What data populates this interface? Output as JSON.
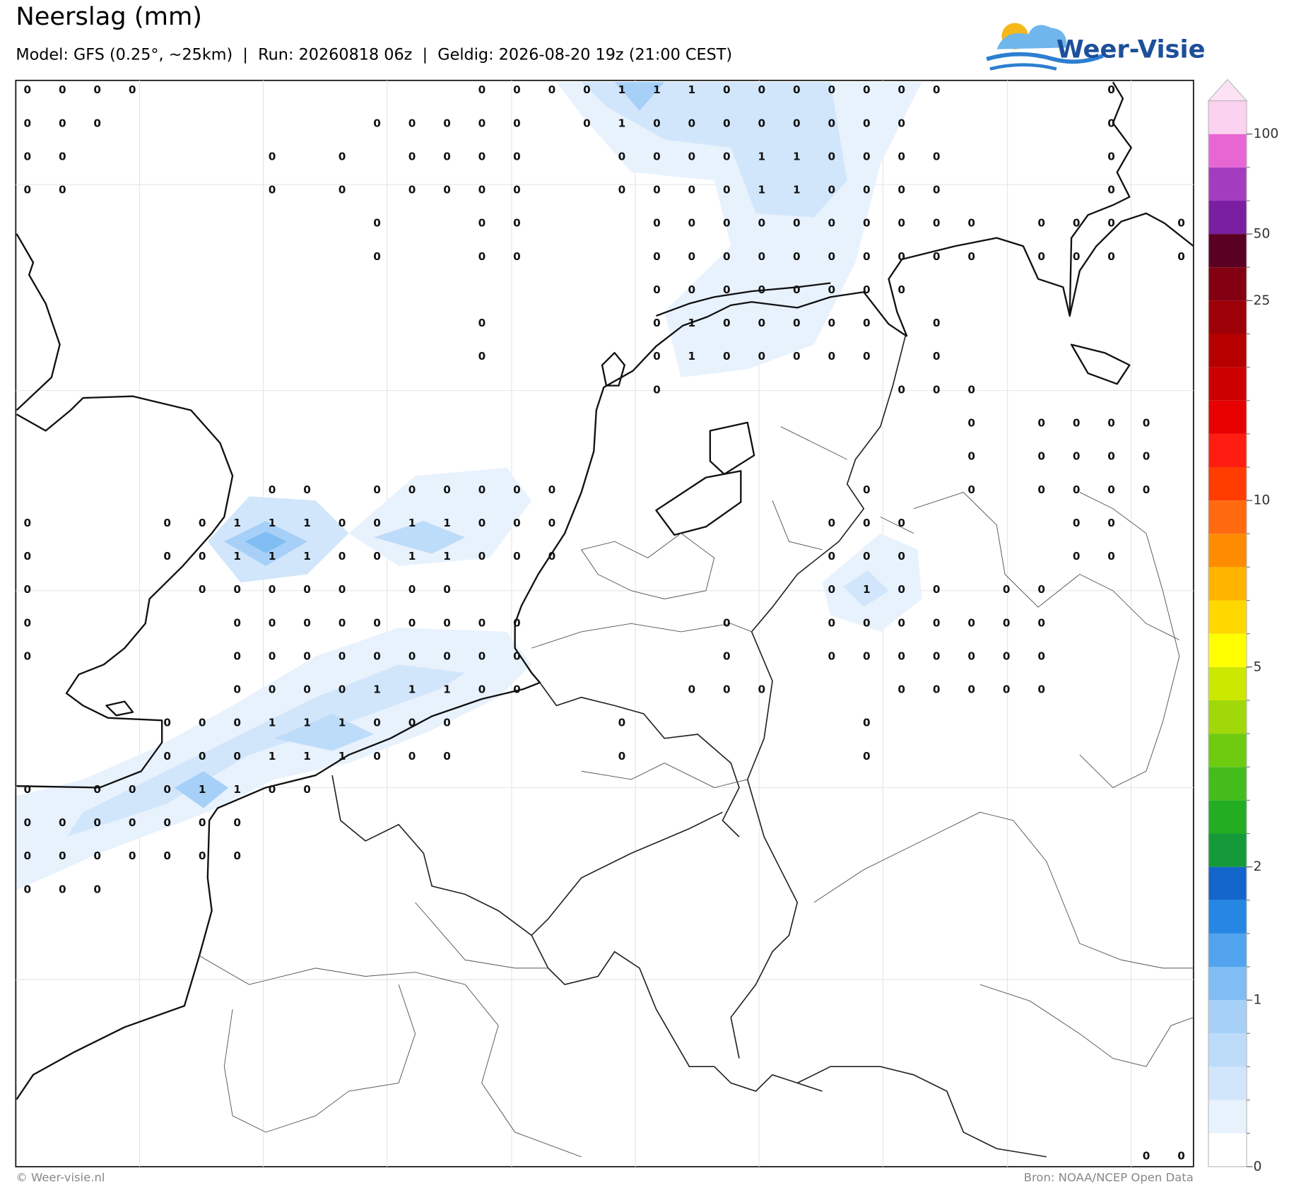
{
  "header": {
    "title": "Neerslag (mm)",
    "subtitle": "Model: GFS (0.25°, ~25km)  |  Run: 20260818 06z  |  Geldig: 2026-08-20 19z (21:00 CEST)"
  },
  "logo": {
    "text": "Weer-Visie"
  },
  "grid": {
    "rows": [
      [
        0,
        0,
        0,
        0,
        null,
        null,
        null,
        null,
        null,
        null,
        null,
        null,
        null,
        0,
        0,
        0,
        0,
        1,
        1,
        1,
        0,
        0,
        0,
        0,
        0,
        0,
        0,
        null,
        null,
        null,
        null,
        0,
        null,
        null
      ],
      [
        0,
        0,
        0,
        null,
        null,
        null,
        null,
        null,
        null,
        null,
        0,
        0,
        0,
        0,
        0,
        null,
        0,
        1,
        0,
        0,
        0,
        0,
        0,
        0,
        0,
        0,
        null,
        null,
        null,
        null,
        null,
        0,
        null,
        null
      ],
      [
        0,
        0,
        null,
        null,
        null,
        null,
        null,
        0,
        null,
        0,
        null,
        0,
        0,
        0,
        0,
        null,
        null,
        0,
        0,
        0,
        0,
        1,
        1,
        0,
        0,
        0,
        0,
        null,
        null,
        null,
        null,
        0,
        null,
        null
      ],
      [
        0,
        0,
        null,
        null,
        null,
        null,
        null,
        0,
        null,
        0,
        null,
        0,
        0,
        0,
        0,
        null,
        null,
        0,
        0,
        0,
        0,
        1,
        1,
        0,
        0,
        0,
        0,
        null,
        null,
        null,
        null,
        0,
        null,
        null
      ],
      [
        null,
        null,
        null,
        null,
        null,
        null,
        null,
        null,
        null,
        null,
        0,
        null,
        null,
        0,
        0,
        null,
        null,
        null,
        0,
        0,
        0,
        0,
        0,
        0,
        0,
        0,
        0,
        0,
        null,
        0,
        0,
        0,
        null,
        0
      ],
      [
        null,
        null,
        null,
        null,
        null,
        null,
        null,
        null,
        null,
        null,
        0,
        null,
        null,
        0,
        0,
        null,
        null,
        null,
        0,
        0,
        0,
        0,
        0,
        0,
        0,
        0,
        0,
        0,
        null,
        0,
        0,
        0,
        null,
        0
      ],
      [
        null,
        null,
        null,
        null,
        null,
        null,
        null,
        null,
        null,
        null,
        null,
        null,
        null,
        null,
        null,
        null,
        null,
        null,
        0,
        0,
        0,
        0,
        0,
        0,
        0,
        0,
        null,
        null,
        null,
        null,
        null,
        null,
        null,
        null
      ],
      [
        null,
        null,
        null,
        null,
        null,
        null,
        null,
        null,
        null,
        null,
        null,
        null,
        null,
        0,
        null,
        null,
        null,
        null,
        0,
        1,
        0,
        0,
        0,
        0,
        0,
        null,
        0,
        null,
        null,
        null,
        null,
        null,
        null,
        null
      ],
      [
        null,
        null,
        null,
        null,
        null,
        null,
        null,
        null,
        null,
        null,
        null,
        null,
        null,
        0,
        null,
        null,
        null,
        null,
        0,
        1,
        0,
        0,
        0,
        0,
        0,
        null,
        0,
        null,
        null,
        null,
        null,
        null,
        null,
        null
      ],
      [
        null,
        null,
        null,
        null,
        null,
        null,
        null,
        null,
        null,
        null,
        null,
        null,
        null,
        null,
        null,
        null,
        null,
        null,
        0,
        null,
        null,
        null,
        null,
        null,
        null,
        0,
        0,
        0,
        null,
        null,
        null,
        null,
        null,
        null
      ],
      [
        null,
        null,
        null,
        null,
        null,
        null,
        null,
        null,
        null,
        null,
        null,
        null,
        null,
        null,
        null,
        null,
        null,
        null,
        null,
        null,
        null,
        null,
        null,
        null,
        null,
        null,
        null,
        0,
        null,
        0,
        0,
        0,
        0,
        null
      ],
      [
        null,
        null,
        null,
        null,
        null,
        null,
        null,
        null,
        null,
        null,
        null,
        null,
        null,
        null,
        null,
        null,
        null,
        null,
        null,
        null,
        null,
        null,
        null,
        null,
        null,
        null,
        null,
        0,
        null,
        0,
        0,
        0,
        0,
        null
      ],
      [
        null,
        null,
        null,
        null,
        null,
        null,
        null,
        0,
        0,
        null,
        0,
        0,
        0,
        0,
        0,
        0,
        null,
        null,
        null,
        null,
        null,
        null,
        null,
        null,
        0,
        null,
        null,
        0,
        null,
        0,
        0,
        0,
        0,
        null
      ],
      [
        0,
        null,
        null,
        null,
        0,
        0,
        1,
        1,
        1,
        0,
        0,
        1,
        1,
        0,
        0,
        0,
        null,
        null,
        null,
        null,
        null,
        null,
        null,
        0,
        0,
        0,
        null,
        null,
        null,
        null,
        0,
        0,
        null,
        null
      ],
      [
        0,
        null,
        null,
        null,
        0,
        0,
        1,
        1,
        1,
        0,
        0,
        1,
        1,
        0,
        0,
        0,
        null,
        null,
        null,
        null,
        null,
        null,
        null,
        0,
        0,
        0,
        null,
        null,
        null,
        null,
        0,
        0,
        null,
        null
      ],
      [
        0,
        null,
        null,
        null,
        null,
        0,
        0,
        0,
        0,
        0,
        null,
        0,
        0,
        null,
        null,
        null,
        null,
        null,
        null,
        null,
        null,
        null,
        null,
        0,
        1,
        0,
        0,
        null,
        0,
        0,
        null,
        null,
        null,
        null
      ],
      [
        0,
        null,
        null,
        null,
        null,
        null,
        0,
        0,
        0,
        0,
        0,
        0,
        0,
        0,
        0,
        null,
        null,
        null,
        null,
        null,
        0,
        null,
        null,
        0,
        0,
        0,
        0,
        0,
        0,
        0,
        null,
        null,
        null,
        null
      ],
      [
        0,
        null,
        null,
        null,
        null,
        null,
        0,
        0,
        0,
        0,
        0,
        0,
        0,
        0,
        0,
        null,
        null,
        null,
        null,
        null,
        0,
        null,
        null,
        0,
        0,
        0,
        0,
        0,
        0,
        0,
        null,
        null,
        null,
        null
      ],
      [
        null,
        null,
        null,
        null,
        null,
        null,
        0,
        0,
        0,
        0,
        1,
        1,
        1,
        0,
        0,
        null,
        null,
        null,
        null,
        0,
        0,
        0,
        null,
        null,
        null,
        0,
        0,
        0,
        0,
        0,
        null,
        null,
        null,
        null
      ],
      [
        null,
        null,
        null,
        null,
        0,
        0,
        0,
        1,
        1,
        1,
        0,
        0,
        0,
        null,
        null,
        null,
        null,
        0,
        null,
        null,
        null,
        null,
        null,
        null,
        0,
        null,
        null,
        null,
        null,
        null,
        null,
        null,
        null,
        null
      ],
      [
        null,
        null,
        null,
        null,
        0,
        0,
        0,
        1,
        1,
        1,
        0,
        0,
        0,
        null,
        null,
        null,
        null,
        0,
        null,
        null,
        null,
        null,
        null,
        null,
        0,
        null,
        null,
        null,
        null,
        null,
        null,
        null,
        null,
        null
      ],
      [
        0,
        null,
        0,
        0,
        0,
        1,
        1,
        0,
        0,
        null,
        null,
        null,
        null,
        null,
        null,
        null,
        null,
        null,
        null,
        null,
        null,
        null,
        null,
        null,
        null,
        null,
        null,
        null,
        null,
        null,
        null,
        null,
        null,
        null
      ],
      [
        0,
        0,
        0,
        0,
        0,
        0,
        0,
        null,
        null,
        null,
        null,
        null,
        null,
        null,
        null,
        null,
        null,
        null,
        null,
        null,
        null,
        null,
        null,
        null,
        null,
        null,
        null,
        null,
        null,
        null,
        null,
        null,
        null,
        null
      ],
      [
        0,
        0,
        0,
        0,
        0,
        0,
        0,
        null,
        null,
        null,
        null,
        null,
        null,
        null,
        null,
        null,
        null,
        null,
        null,
        null,
        null,
        null,
        null,
        null,
        null,
        null,
        null,
        null,
        null,
        null,
        null,
        null,
        null,
        null
      ],
      [
        0,
        0,
        0,
        null,
        null,
        null,
        null,
        null,
        null,
        null,
        null,
        null,
        null,
        null,
        null,
        null,
        null,
        null,
        null,
        null,
        null,
        null,
        null,
        null,
        null,
        null,
        null,
        null,
        null,
        null,
        null,
        null,
        null,
        null
      ],
      [
        null,
        null,
        null,
        null,
        null,
        null,
        null,
        null,
        null,
        null,
        null,
        null,
        null,
        null,
        null,
        null,
        null,
        null,
        null,
        null,
        null,
        null,
        null,
        null,
        null,
        null,
        null,
        null,
        null,
        null,
        null,
        null,
        null,
        null
      ],
      [
        null,
        null,
        null,
        null,
        null,
        null,
        null,
        null,
        null,
        null,
        null,
        null,
        null,
        null,
        null,
        null,
        null,
        null,
        null,
        null,
        null,
        null,
        null,
        null,
        null,
        null,
        null,
        null,
        null,
        null,
        null,
        null,
        null,
        null
      ],
      [
        null,
        null,
        null,
        null,
        null,
        null,
        null,
        null,
        null,
        null,
        null,
        null,
        null,
        null,
        null,
        null,
        null,
        null,
        null,
        null,
        null,
        null,
        null,
        null,
        null,
        null,
        null,
        null,
        null,
        null,
        null,
        null,
        null,
        null
      ],
      [
        null,
        null,
        null,
        null,
        null,
        null,
        null,
        null,
        null,
        null,
        null,
        null,
        null,
        null,
        null,
        null,
        null,
        null,
        null,
        null,
        null,
        null,
        null,
        null,
        null,
        null,
        null,
        null,
        null,
        null,
        null,
        null,
        null,
        null
      ],
      [
        null,
        null,
        null,
        null,
        null,
        null,
        null,
        null,
        null,
        null,
        null,
        null,
        null,
        null,
        null,
        null,
        null,
        null,
        null,
        null,
        null,
        null,
        null,
        null,
        null,
        null,
        null,
        null,
        null,
        null,
        null,
        null,
        null,
        null
      ],
      [
        null,
        null,
        null,
        null,
        null,
        null,
        null,
        null,
        null,
        null,
        null,
        null,
        null,
        null,
        null,
        null,
        null,
        null,
        null,
        null,
        null,
        null,
        null,
        null,
        null,
        null,
        null,
        null,
        null,
        null,
        null,
        null,
        null,
        null
      ],
      [
        null,
        null,
        null,
        null,
        null,
        null,
        null,
        null,
        null,
        null,
        null,
        null,
        null,
        null,
        null,
        null,
        null,
        null,
        null,
        null,
        null,
        null,
        null,
        null,
        null,
        null,
        null,
        null,
        null,
        null,
        null,
        null,
        null,
        null
      ],
      [
        null,
        null,
        null,
        null,
        null,
        null,
        null,
        null,
        null,
        null,
        null,
        null,
        null,
        null,
        null,
        null,
        null,
        null,
        null,
        null,
        null,
        null,
        null,
        null,
        null,
        null,
        null,
        null,
        null,
        null,
        null,
        null,
        0,
        0
      ]
    ]
  },
  "colorbar": {
    "colors": [
      "#ffffff",
      "#e8f2fd",
      "#d2e6fb",
      "#bddcfa",
      "#a6d0f8",
      "#7fbdf3",
      "#50a3ec",
      "#2587e3",
      "#1266cc",
      "#149a38",
      "#22ad22",
      "#44bd1c",
      "#6fcb10",
      "#a0d80a",
      "#cce800",
      "#ffff00",
      "#ffd800",
      "#ffb400",
      "#ff8c00",
      "#ff6a10",
      "#ff3c00",
      "#ff1c10",
      "#e60000",
      "#cc0000",
      "#b60000",
      "#9e0008",
      "#820012",
      "#5a0022",
      "#7a1fa0",
      "#a43cc0",
      "#e866d4",
      "#fbd2f0"
    ],
    "ticks": [
      0,
      1,
      2,
      5,
      10,
      25,
      50,
      100
    ]
  },
  "footer": {
    "left": "© Weer-visie.nl",
    "right": "Bron: NOAA/NCEP Open Data"
  }
}
